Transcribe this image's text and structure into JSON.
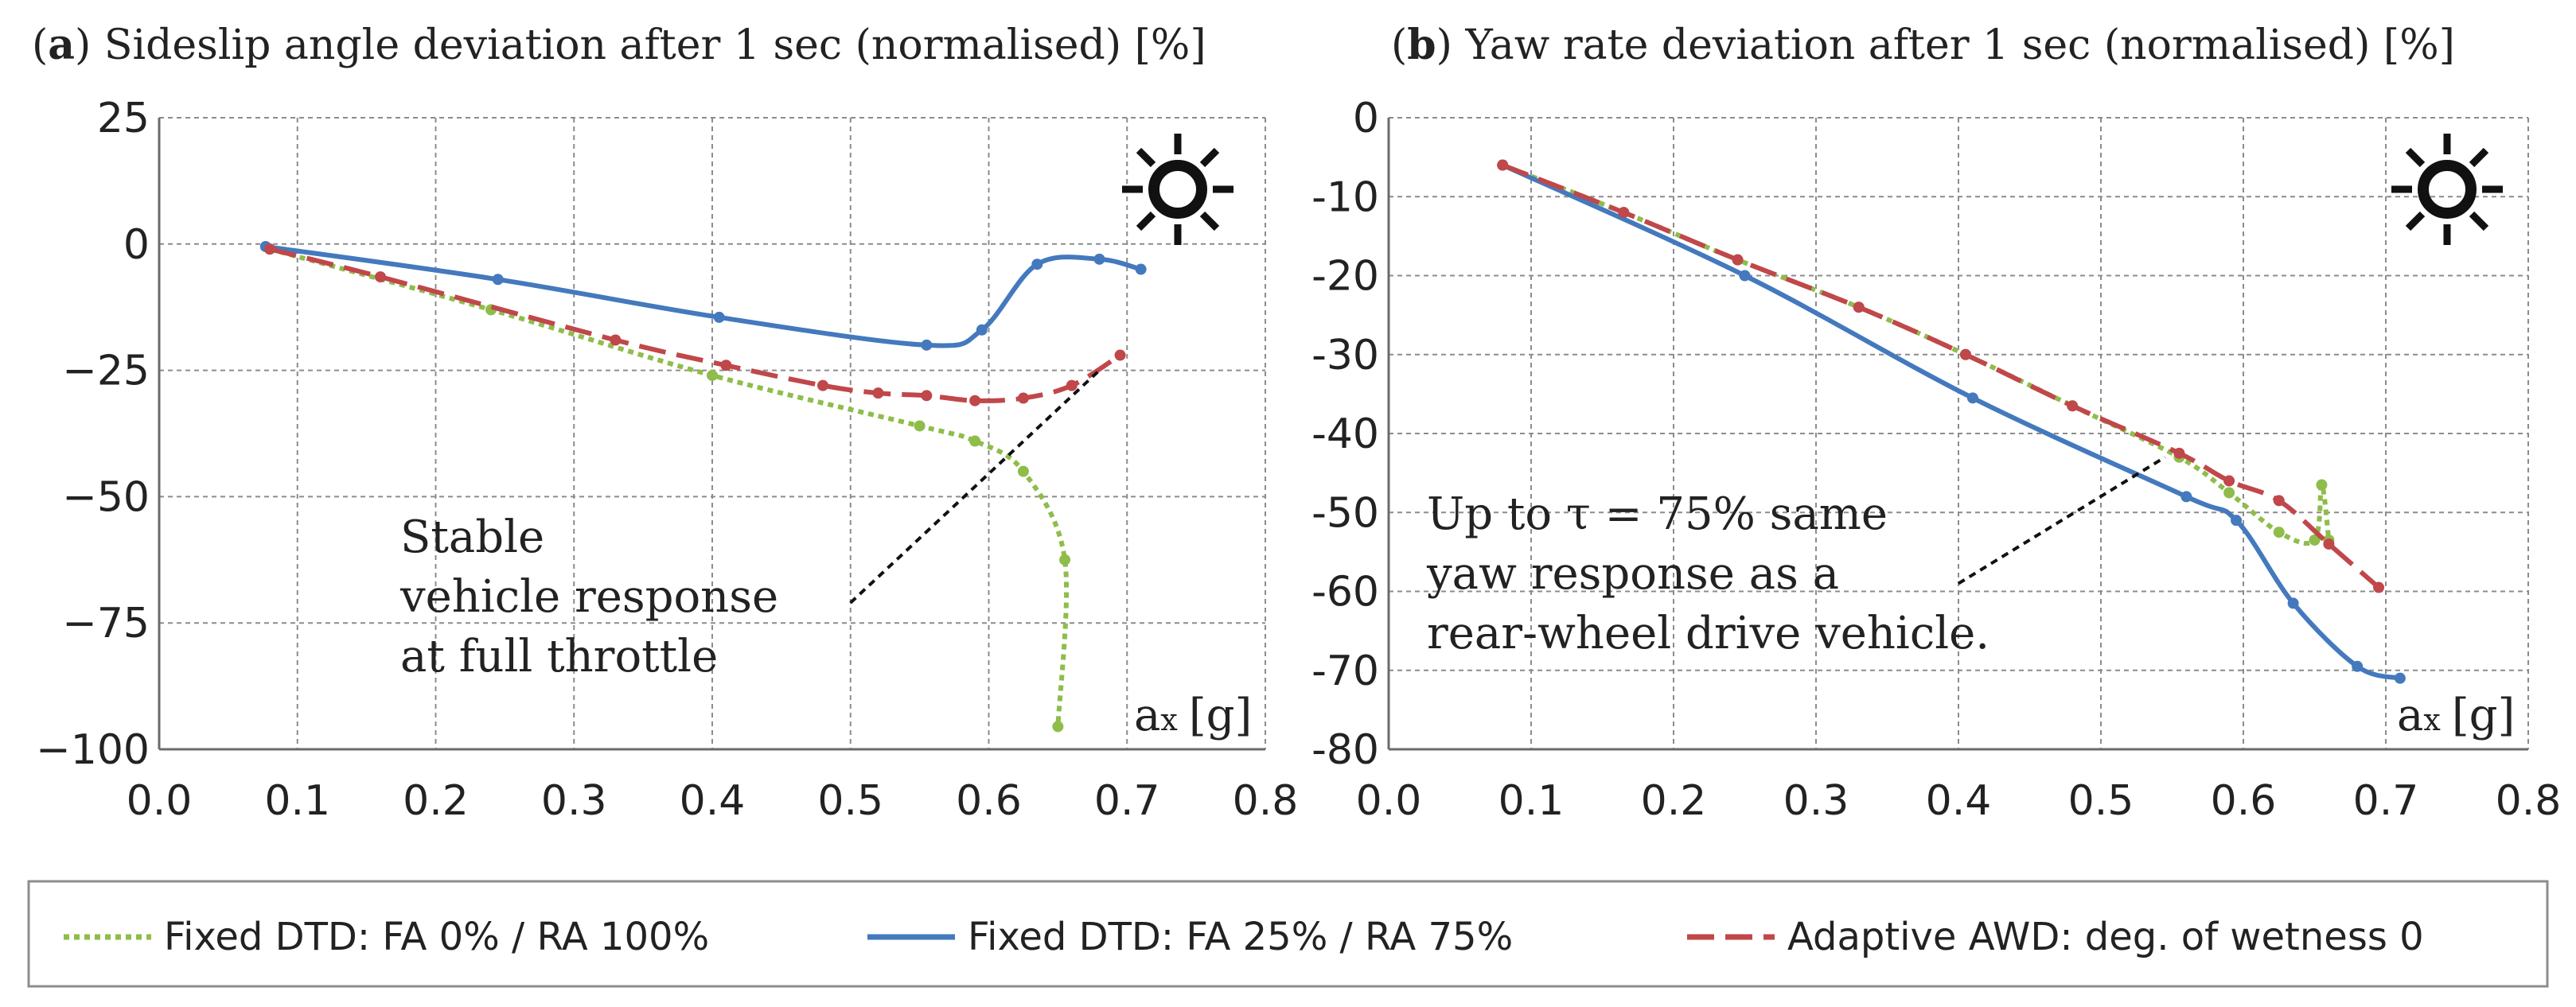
{
  "chart_data": [
    {
      "type": "line",
      "panel_letter": "a",
      "title": "Sideslip angle deviation after 1 sec (normalised) [%]",
      "xlabel": "ax [g]",
      "xlabel_main": "a",
      "xlabel_sub": "x",
      "xlabel_unit": "[g]",
      "xlim": [
        0.0,
        0.8
      ],
      "ylim": [
        -100,
        25
      ],
      "xticks": [
        0.0,
        0.1,
        0.2,
        0.3,
        0.4,
        0.5,
        0.6,
        0.7,
        0.8
      ],
      "xtick_labels": [
        "0.0",
        "0.1",
        "0.2",
        "0.3",
        "0.4",
        "0.5",
        "0.6",
        "0.7",
        "0.8"
      ],
      "yticks": [
        25,
        0,
        -25,
        -50,
        -75,
        -100
      ],
      "ytick_labels": [
        "25",
        "0",
        "−25",
        "−50",
        "−75",
        "−100"
      ],
      "grid": true,
      "annotation": [
        "Stable",
        "vehicle response",
        "at full throttle"
      ],
      "annotation_arrow": {
        "from": [
          0.5,
          -71
        ],
        "to": [
          0.68,
          -25
        ]
      },
      "series": [
        {
          "name": "Fixed DTD: FA 0% / RA 100%",
          "color": "#8ebd4a",
          "style": "dotted",
          "x": [
            0.08,
            0.24,
            0.4,
            0.55,
            0.59,
            0.625,
            0.655,
            0.65
          ],
          "y": [
            -1,
            -13,
            -26,
            -36,
            -39,
            -45,
            -62.5,
            -95.5
          ]
        },
        {
          "name": "Fixed DTD: FA 25% / RA 75%",
          "color": "#4479bd",
          "style": "solid",
          "x": [
            0.077,
            0.245,
            0.405,
            0.555,
            0.595,
            0.635,
            0.68,
            0.71
          ],
          "y": [
            -0.5,
            -7,
            -14.5,
            -20,
            -17,
            -4,
            -3,
            -5
          ]
        },
        {
          "name": "Adaptive AWD: deg. of wetness 0",
          "color": "#c0474a",
          "style": "dashed",
          "x": [
            0.08,
            0.16,
            0.33,
            0.41,
            0.48,
            0.52,
            0.555,
            0.59,
            0.625,
            0.66,
            0.695
          ],
          "y": [
            -1,
            -6.5,
            -19,
            -24,
            -28,
            -29.5,
            -30,
            -31,
            -30.5,
            -28,
            -22
          ]
        }
      ]
    },
    {
      "type": "line",
      "panel_letter": "b",
      "title": "Yaw rate deviation after 1 sec (normalised) [%]",
      "xlabel": "ax [g]",
      "xlabel_main": "a",
      "xlabel_sub": "x",
      "xlabel_unit": "[g]",
      "xlim": [
        0.0,
        0.8
      ],
      "ylim": [
        -80,
        0
      ],
      "xticks": [
        0.0,
        0.1,
        0.2,
        0.3,
        0.4,
        0.5,
        0.6,
        0.7,
        0.8
      ],
      "xtick_labels": [
        "0.0",
        "0.1",
        "0.2",
        "0.3",
        "0.4",
        "0.5",
        "0.6",
        "0.7",
        "0.8"
      ],
      "yticks": [
        0,
        -10,
        -20,
        -30,
        -40,
        -50,
        -60,
        -70,
        -80
      ],
      "ytick_labels": [
        "0",
        "-10",
        "-20",
        "-30",
        "-40",
        "-50",
        "-60",
        "-70",
        "-80"
      ],
      "grid": true,
      "annotation": [
        "Up to τ = 75% same",
        "yaw response as a",
        "rear-wheel drive vehicle."
      ],
      "annotation_arrow": {
        "from": [
          0.4,
          -59
        ],
        "to": [
          0.545,
          -43
        ]
      },
      "series": [
        {
          "name": "Fixed DTD: FA 0% / RA 100%",
          "color": "#8ebd4a",
          "style": "dotted",
          "x": [
            0.08,
            0.165,
            0.245,
            0.33,
            0.405,
            0.48,
            0.555,
            0.59,
            0.625,
            0.65,
            0.655,
            0.66
          ],
          "y": [
            -6,
            -12,
            -18,
            -24,
            -30,
            -36.5,
            -43,
            -47.5,
            -52.5,
            -53.5,
            -46.5,
            -53.5
          ]
        },
        {
          "name": "Fixed DTD: FA 25% / RA 75%",
          "color": "#4479bd",
          "style": "solid",
          "x": [
            0.08,
            0.25,
            0.41,
            0.56,
            0.595,
            0.635,
            0.68,
            0.71
          ],
          "y": [
            -6,
            -20,
            -35.5,
            -48,
            -51,
            -61.5,
            -69.5,
            -71
          ]
        },
        {
          "name": "Adaptive AWD: deg. of wetness 0",
          "color": "#c0474a",
          "style": "dashed",
          "x": [
            0.08,
            0.165,
            0.245,
            0.33,
            0.405,
            0.48,
            0.555,
            0.59,
            0.625,
            0.66,
            0.695
          ],
          "y": [
            -6,
            -12,
            -18,
            -24,
            -30,
            -36.5,
            -42.5,
            -46,
            -48.5,
            -54,
            -59.5
          ]
        }
      ]
    }
  ],
  "legend": {
    "items": [
      {
        "label": "Fixed DTD: FA 0% / RA 100%",
        "color": "#8ebd4a",
        "style": "dotted"
      },
      {
        "label": "Fixed DTD: FA 25% / RA 75%",
        "color": "#4479bd",
        "style": "solid"
      },
      {
        "label": "Adaptive AWD: deg. of wetness 0",
        "color": "#c0474a",
        "style": "dashed"
      }
    ]
  },
  "icons": {
    "weather": "sun-icon"
  },
  "colors": {
    "grid": "#8c8c8c",
    "axis": "#6b6b6b",
    "text": "#222222"
  }
}
